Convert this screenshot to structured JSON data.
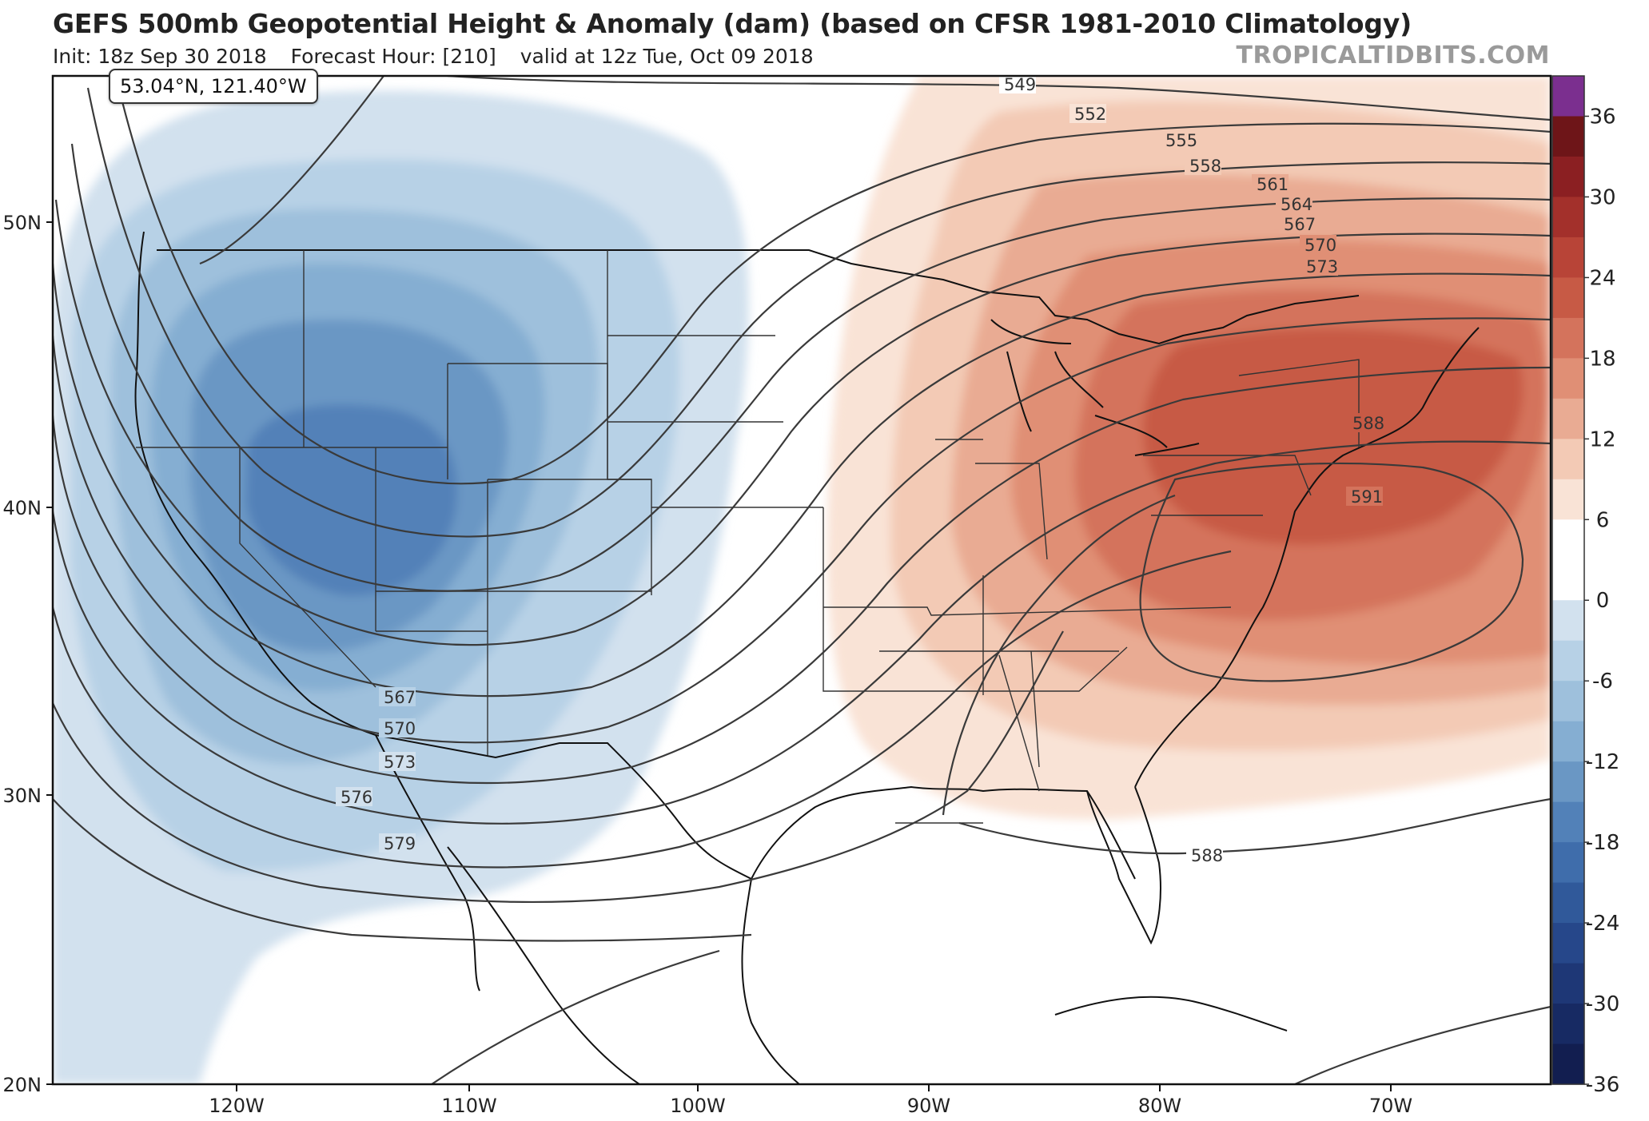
{
  "header": {
    "title": "GEFS 500mb Geopotential Height & Anomaly (dam) (based on CFSR 1981-2010 Climatology)",
    "init": "Init: 18z Sep 30 2018",
    "forecast_hour": "Forecast Hour: [210]",
    "valid": "valid at 12z Tue, Oct 09 2018",
    "brand": "TROPICALTIDBITS.COM"
  },
  "cursor_readout": "53.04°N, 121.40°W",
  "map": {
    "lat_labels": [
      "50N",
      "40N",
      "30N",
      "20N"
    ],
    "lon_labels": [
      "120W",
      "110W",
      "100W",
      "90W",
      "80W",
      "70W"
    ],
    "contour_labels": [
      "549",
      "552",
      "555",
      "558",
      "561",
      "564",
      "567",
      "570",
      "573",
      "588",
      "591",
      "567",
      "570",
      "573",
      "576",
      "579",
      "588"
    ]
  },
  "colorbar": {
    "labels": [
      "36",
      "30",
      "24",
      "18",
      "12",
      "6",
      "0",
      "-6",
      "-12",
      "-18",
      "-24",
      "-30",
      "-36"
    ],
    "colors": [
      "#7b2f8f",
      "#6e1518",
      "#8b1f22",
      "#a3302b",
      "#b84437",
      "#c75a45",
      "#d4735c",
      "#e08f75",
      "#e9ab93",
      "#f3cab5",
      "#f9e3d6",
      "#ffffff",
      "#ffffff",
      "#d2e1ee",
      "#b7d1e6",
      "#9ec0dc",
      "#85aed2",
      "#6a97c4",
      "#5281b8",
      "#3f6dab",
      "#30599a",
      "#26478a",
      "#1e3776",
      "#172a63",
      "#121e50"
    ]
  }
}
